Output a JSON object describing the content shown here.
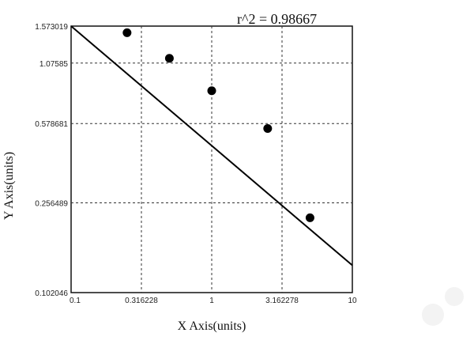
{
  "chart_data": {
    "type": "scatter",
    "title": "",
    "xlabel": "X Axis(units)",
    "ylabel": "Y Axis(units)",
    "annotation": "r^2  = 0.98667",
    "x_scale": "log",
    "y_scale": "log",
    "xlim": [
      0.1,
      10
    ],
    "ylim": [
      0.102046,
      1.573019
    ],
    "x_ticks": [
      {
        "value": 0.1,
        "label": "0.1"
      },
      {
        "value": 0.316228,
        "label": "0.316228"
      },
      {
        "value": 1,
        "label": "1"
      },
      {
        "value": 3.162278,
        "label": "3.162278"
      },
      {
        "value": 10,
        "label": "10"
      }
    ],
    "y_ticks": [
      {
        "value": 0.102046,
        "label": "0.102046"
      },
      {
        "value": 0.256489,
        "label": "0.256489"
      },
      {
        "value": 0.578681,
        "label": "0.578681"
      },
      {
        "value": 1.07585,
        "label": "1.07585"
      },
      {
        "value": 1.573019,
        "label": "1.573019"
      }
    ],
    "grid": true,
    "points": [
      {
        "x": 0.25,
        "y": 1.47
      },
      {
        "x": 0.5,
        "y": 1.13
      },
      {
        "x": 1.0,
        "y": 0.81
      },
      {
        "x": 2.5,
        "y": 0.55
      },
      {
        "x": 5.0,
        "y": 0.22
      }
    ],
    "fit_line": {
      "x": [
        0.1,
        10
      ],
      "y": [
        1.573019,
        0.135
      ]
    },
    "colors": {
      "points": "#000000",
      "line": "#000000",
      "grid": "#333333"
    }
  }
}
